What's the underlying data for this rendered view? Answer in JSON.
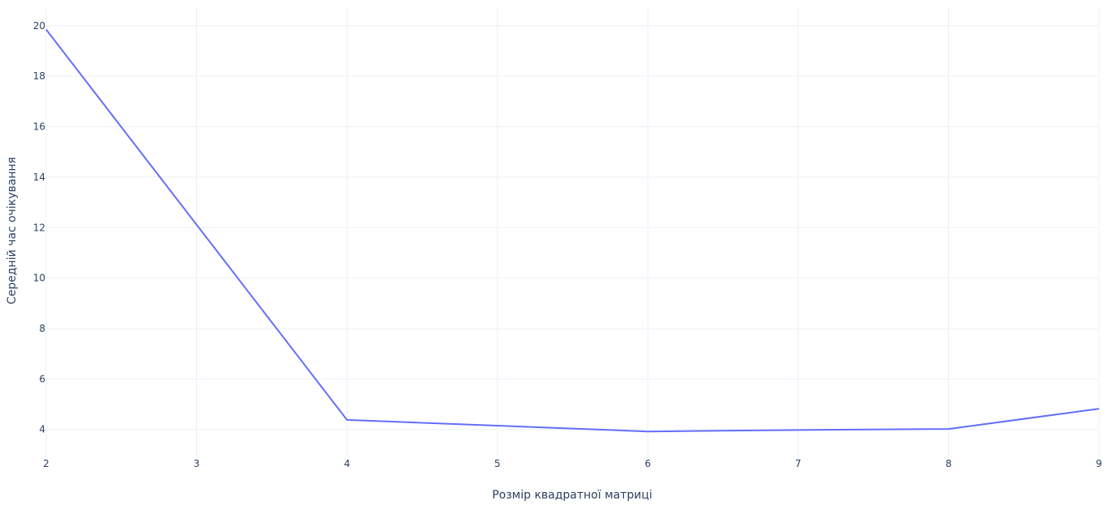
{
  "chart_data": {
    "type": "line",
    "title": "",
    "xlabel": "Розмір квадратної матриці",
    "ylabel": "Середній час очікування",
    "x": [
      2,
      4,
      5,
      6,
      7,
      8,
      9
    ],
    "series": [
      {
        "values": [
          19.85,
          4.38,
          4.15,
          3.92,
          3.98,
          4.02,
          4.82
        ]
      }
    ],
    "xlim": [
      2,
      9
    ],
    "ylim": [
      2.9,
      20.7
    ],
    "x_ticks": [
      2,
      3,
      4,
      5,
      6,
      7,
      8,
      9
    ],
    "y_ticks": [
      4,
      6,
      8,
      10,
      12,
      14,
      16,
      18,
      20
    ],
    "x_tick_labels": [
      "2",
      "3",
      "4",
      "5",
      "6",
      "7",
      "8",
      "9"
    ],
    "y_tick_labels": [
      "4",
      "6",
      "8",
      "10",
      "12",
      "14",
      "16",
      "18",
      "20"
    ],
    "grid": true,
    "legend": "none",
    "colors": {
      "line": "#636efa",
      "grid": "#ebf0f8",
      "text": "#2a3f5f",
      "background": "#ffffff"
    }
  }
}
